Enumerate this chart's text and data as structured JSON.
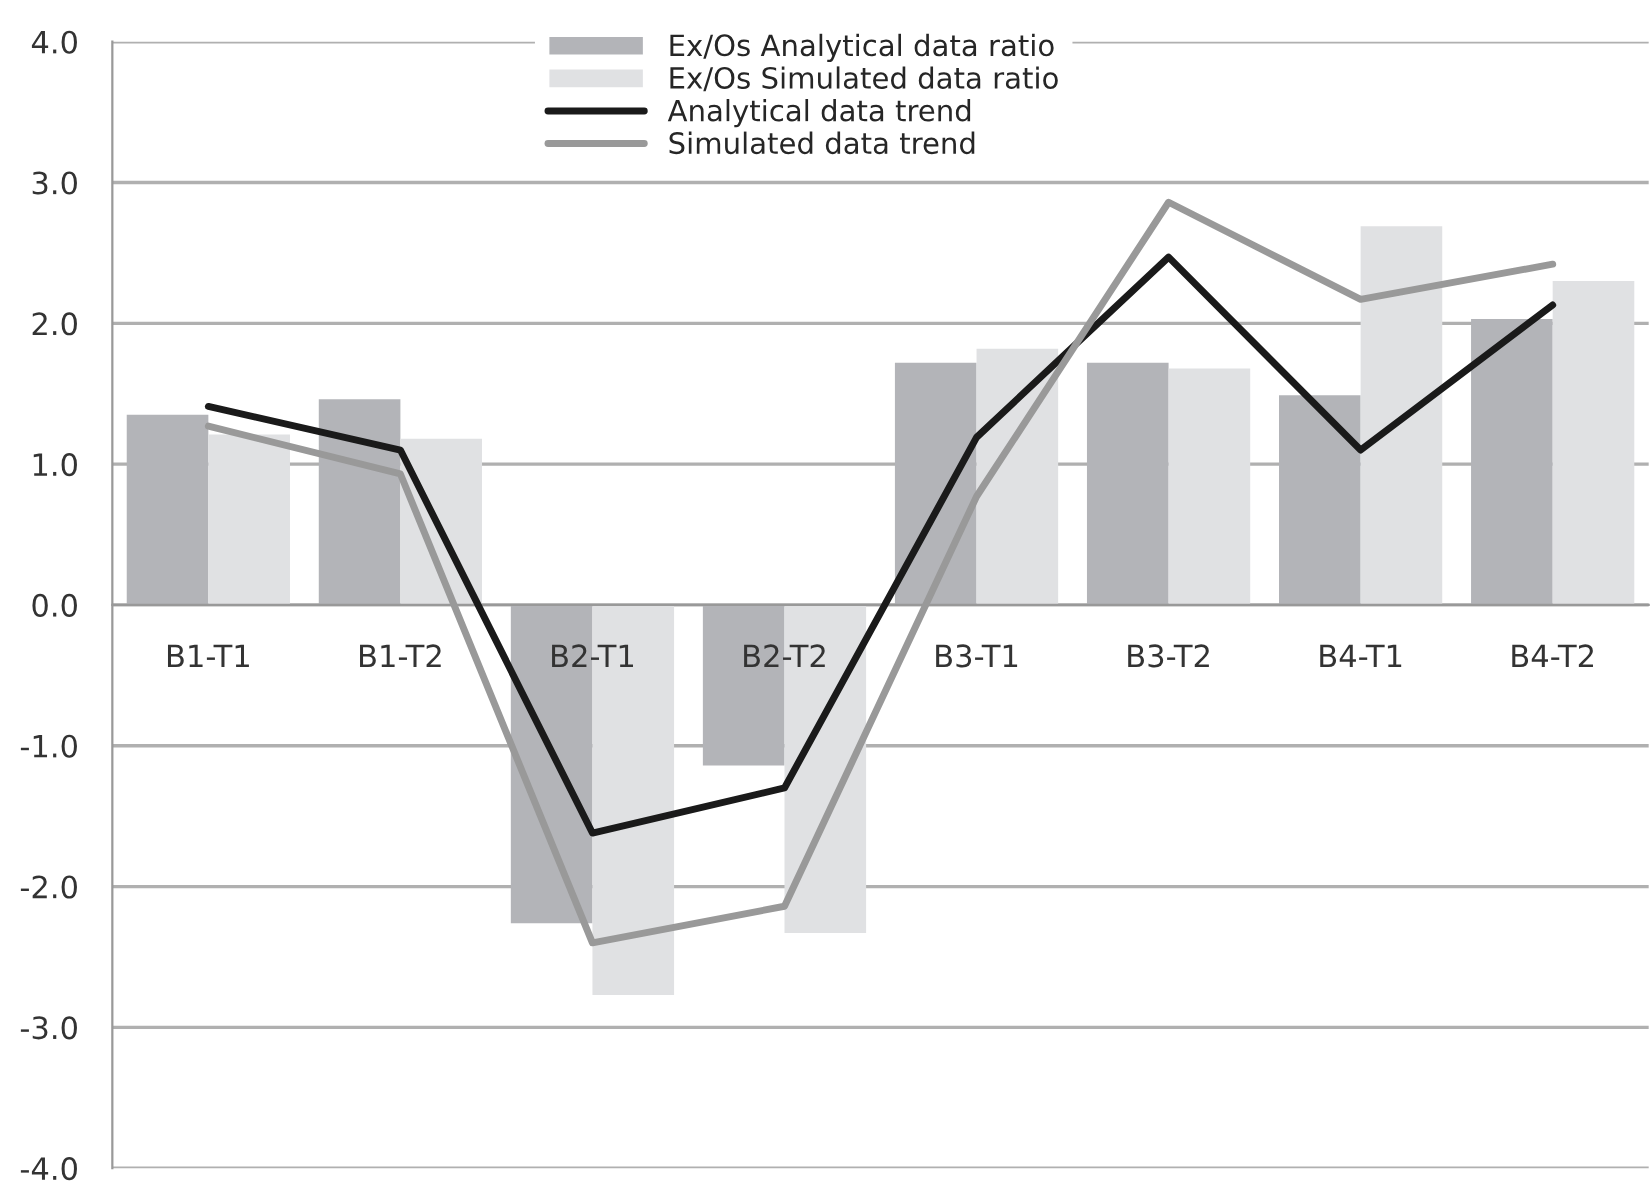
{
  "chart_data": {
    "type": "bar",
    "categories": [
      "B1-T1",
      "B1-T2",
      "B2-T1",
      "B2-T2",
      "B3-T1",
      "B3-T2",
      "B4-T1",
      "B4-T2"
    ],
    "series": [
      {
        "name": "Ex/Os Analytical data ratio",
        "color": "#b3b4b8",
        "values": [
          1.35,
          1.46,
          -2.26,
          -1.14,
          1.72,
          1.72,
          1.49,
          2.03
        ]
      },
      {
        "name": "Ex/Os Simulated data ratio",
        "color": "#e0e1e3",
        "values": [
          1.21,
          1.18,
          -2.77,
          -2.33,
          1.82,
          1.68,
          2.69,
          2.3
        ]
      },
      {
        "name": "Analytical data trend",
        "type": "line",
        "color": "#1a1a1a",
        "values": [
          1.41,
          1.1,
          -1.62,
          -1.3,
          1.19,
          2.47,
          1.1,
          2.13
        ]
      },
      {
        "name": "Simulated data trend",
        "type": "line",
        "color": "#999999",
        "values": [
          1.27,
          0.93,
          -2.4,
          -2.14,
          0.77,
          2.86,
          2.17,
          2.42
        ]
      }
    ],
    "ylim": [
      -4,
      4
    ],
    "yticks": [
      {
        "value": -4,
        "label": "-4.0"
      },
      {
        "value": -3,
        "label": "-3.0"
      },
      {
        "value": -2,
        "label": "-2.0"
      },
      {
        "value": -1,
        "label": "-1.0"
      },
      {
        "value": 0,
        "label": "0.0"
      },
      {
        "value": 1,
        "label": "1.0"
      },
      {
        "value": 2,
        "label": "2.0"
      },
      {
        "value": 3,
        "label": "3.0"
      },
      {
        "value": 4,
        "label": "4.0"
      }
    ],
    "grid": "y",
    "legend": "top"
  }
}
